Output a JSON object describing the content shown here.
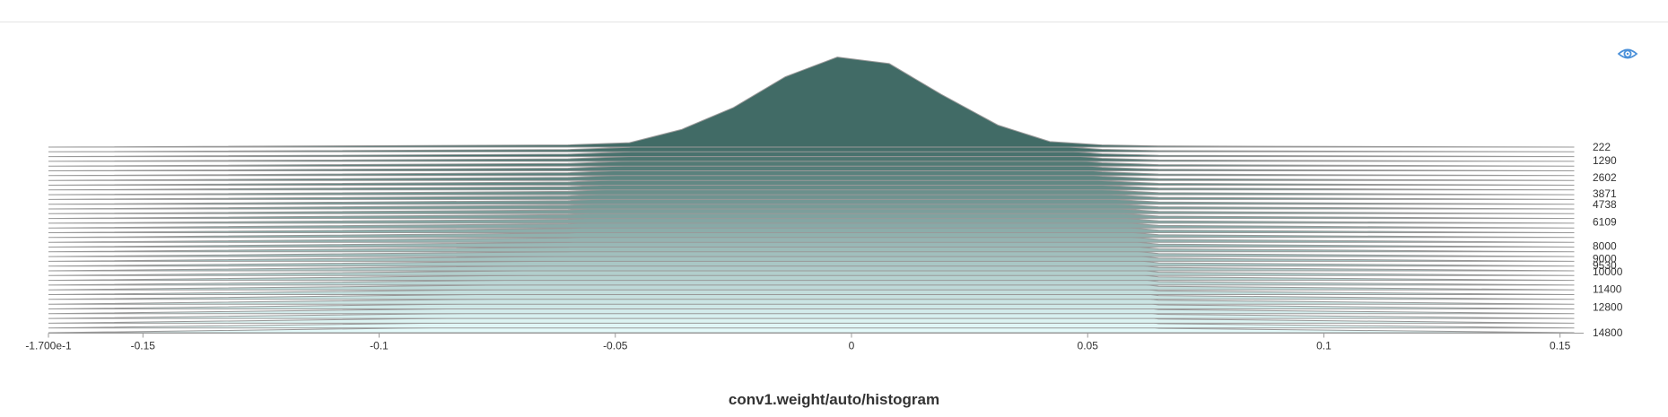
{
  "chart_data": {
    "type": "histogram",
    "title": "conv1.weight/auto/histogram",
    "mode": "offset",
    "x_axis": {
      "min": -0.17,
      "max": 0.155,
      "ticks": [
        {
          "value": -0.17,
          "label": "-1.700e-1"
        },
        {
          "value": -0.15,
          "label": "-0.15"
        },
        {
          "value": -0.1,
          "label": "-0.1"
        },
        {
          "value": -0.05,
          "label": "-0.05"
        },
        {
          "value": 0,
          "label": "0"
        },
        {
          "value": 0.05,
          "label": "0.05"
        },
        {
          "value": 0.1,
          "label": "0.1"
        },
        {
          "value": 0.15,
          "label": "0.15"
        }
      ]
    },
    "step_axis": {
      "min": 222,
      "max": 14800,
      "ticks": [
        222,
        1290,
        2602,
        3871,
        4738,
        6109,
        8000,
        9000,
        9530,
        10000,
        11400,
        12800,
        14800
      ]
    },
    "num_steps": 40,
    "first_step_profile": {
      "x": [
        -0.17,
        -0.06,
        -0.047,
        -0.036,
        -0.025,
        -0.014,
        -0.003,
        0.008,
        0.019,
        0.031,
        0.042,
        0.053,
        0.065,
        0.153
      ],
      "height": [
        0,
        0.01,
        0.02,
        0.08,
        0.18,
        0.32,
        0.41,
        0.38,
        0.24,
        0.1,
        0.025,
        0.01,
        0.005,
        0
      ]
    },
    "last_step_profile": {
      "x": [
        -0.17,
        -0.06,
        -0.047,
        -0.036,
        -0.025,
        -0.014,
        -0.003,
        0.008,
        0.019,
        0.031,
        0.042,
        0.053,
        0.065,
        0.153
      ],
      "height": [
        0,
        0.03,
        0.05,
        0.26,
        0.56,
        0.84,
        1.0,
        0.97,
        0.71,
        0.4,
        0.14,
        0.06,
        0.02,
        0
      ]
    },
    "colors": {
      "fill_back": "#416b66",
      "fill_front": "#e4fafa",
      "stroke": "#999999",
      "axis": "#999999"
    }
  },
  "toolbar": {
    "visibility_icon": "eye-icon",
    "accent_color": "#4a90d9"
  }
}
